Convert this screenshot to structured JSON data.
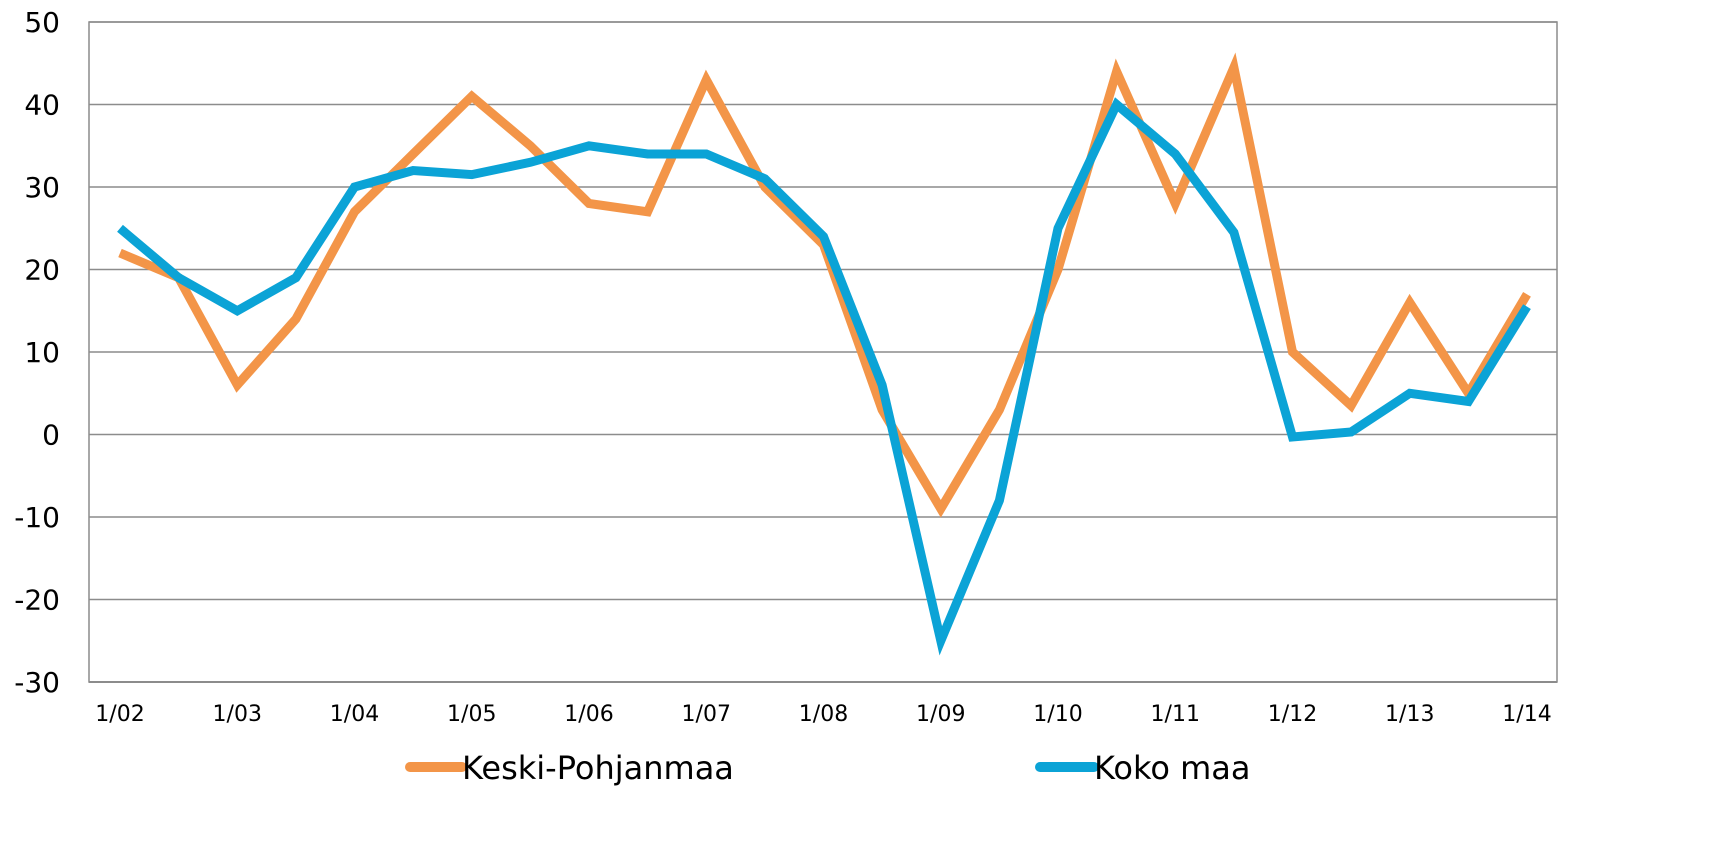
{
  "chart_data": {
    "type": "line",
    "title": "",
    "xlabel": "",
    "ylabel": "",
    "ylim": [
      -30,
      50
    ],
    "yticks": [
      50,
      40,
      30,
      20,
      10,
      0,
      -10,
      -20,
      -30
    ],
    "x_tick_labels": [
      "1/02",
      "1/03",
      "1/04",
      "1/05",
      "1/06",
      "1/07",
      "1/08",
      "1/09",
      "1/10",
      "1/11",
      "1/12",
      "1/13",
      "1/14"
    ],
    "x": [
      "1/02",
      "7/02",
      "1/03",
      "7/03",
      "1/04",
      "7/04",
      "1/05",
      "7/05",
      "1/06",
      "7/06",
      "1/07",
      "7/07",
      "1/08",
      "7/08",
      "1/09",
      "7/09",
      "1/10",
      "7/10",
      "1/11",
      "7/11",
      "1/12",
      "7/12",
      "1/13",
      "7/13",
      "1/14"
    ],
    "grid": true,
    "legend_position": "bottom",
    "series": [
      {
        "name": "Keski-Pohjanmaa",
        "color": "#F39548",
        "values": [
          22,
          19,
          6,
          14,
          27,
          34,
          41,
          35,
          28,
          27,
          43,
          30,
          23,
          3,
          -9,
          3,
          20,
          44,
          28,
          44.5,
          10,
          3.5,
          16,
          5,
          17
        ]
      },
      {
        "name": "Koko maa",
        "color": "#0BA3D6",
        "values": [
          25,
          19,
          15,
          19,
          30,
          32,
          31.5,
          33,
          35,
          34,
          34,
          31,
          24,
          6,
          -25,
          -8,
          25,
          40,
          34,
          24.5,
          -0.3,
          0.3,
          5,
          4,
          15.5
        ]
      }
    ]
  }
}
